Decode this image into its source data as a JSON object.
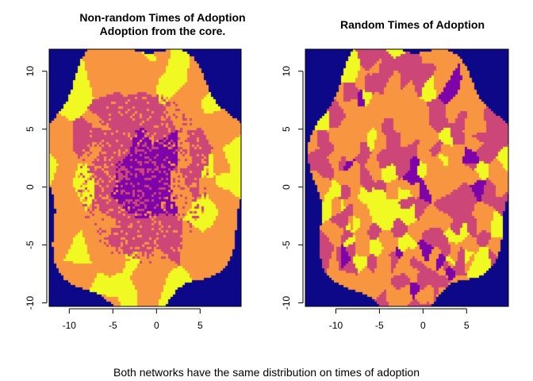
{
  "caption": "Both networks have the same distribution on times of adoption",
  "palette": [
    "#0D0887",
    "#7E03A8",
    "#CC4778",
    "#F89540",
    "#F0F921"
  ],
  "chart_data": [
    {
      "type": "heatmap",
      "title_line1": "Non-random Times of Adoption",
      "title_line2": "Adoption from the core.",
      "xlim": [
        -12.3,
        9.7
      ],
      "ylim": [
        -10.3,
        11.9
      ],
      "xticks": [
        -10,
        -5,
        0,
        5
      ],
      "yticks": [
        -10,
        -5,
        0,
        5,
        10
      ],
      "pattern": "earliest adoption (purple) in the core, later adoption (magenta, orange, yellow) toward the periphery; dark blue outside network"
    },
    {
      "type": "heatmap",
      "title_line1": "Random Times of Adoption",
      "xlim": [
        -13.5,
        9.8
      ],
      "ylim": [
        -10.3,
        11.9
      ],
      "xticks": [
        -10,
        -5,
        0,
        5
      ],
      "yticks": [
        -10,
        -5,
        0,
        5,
        10
      ],
      "pattern": "adoption times randomly scattered across the network; dark blue outside network"
    }
  ]
}
